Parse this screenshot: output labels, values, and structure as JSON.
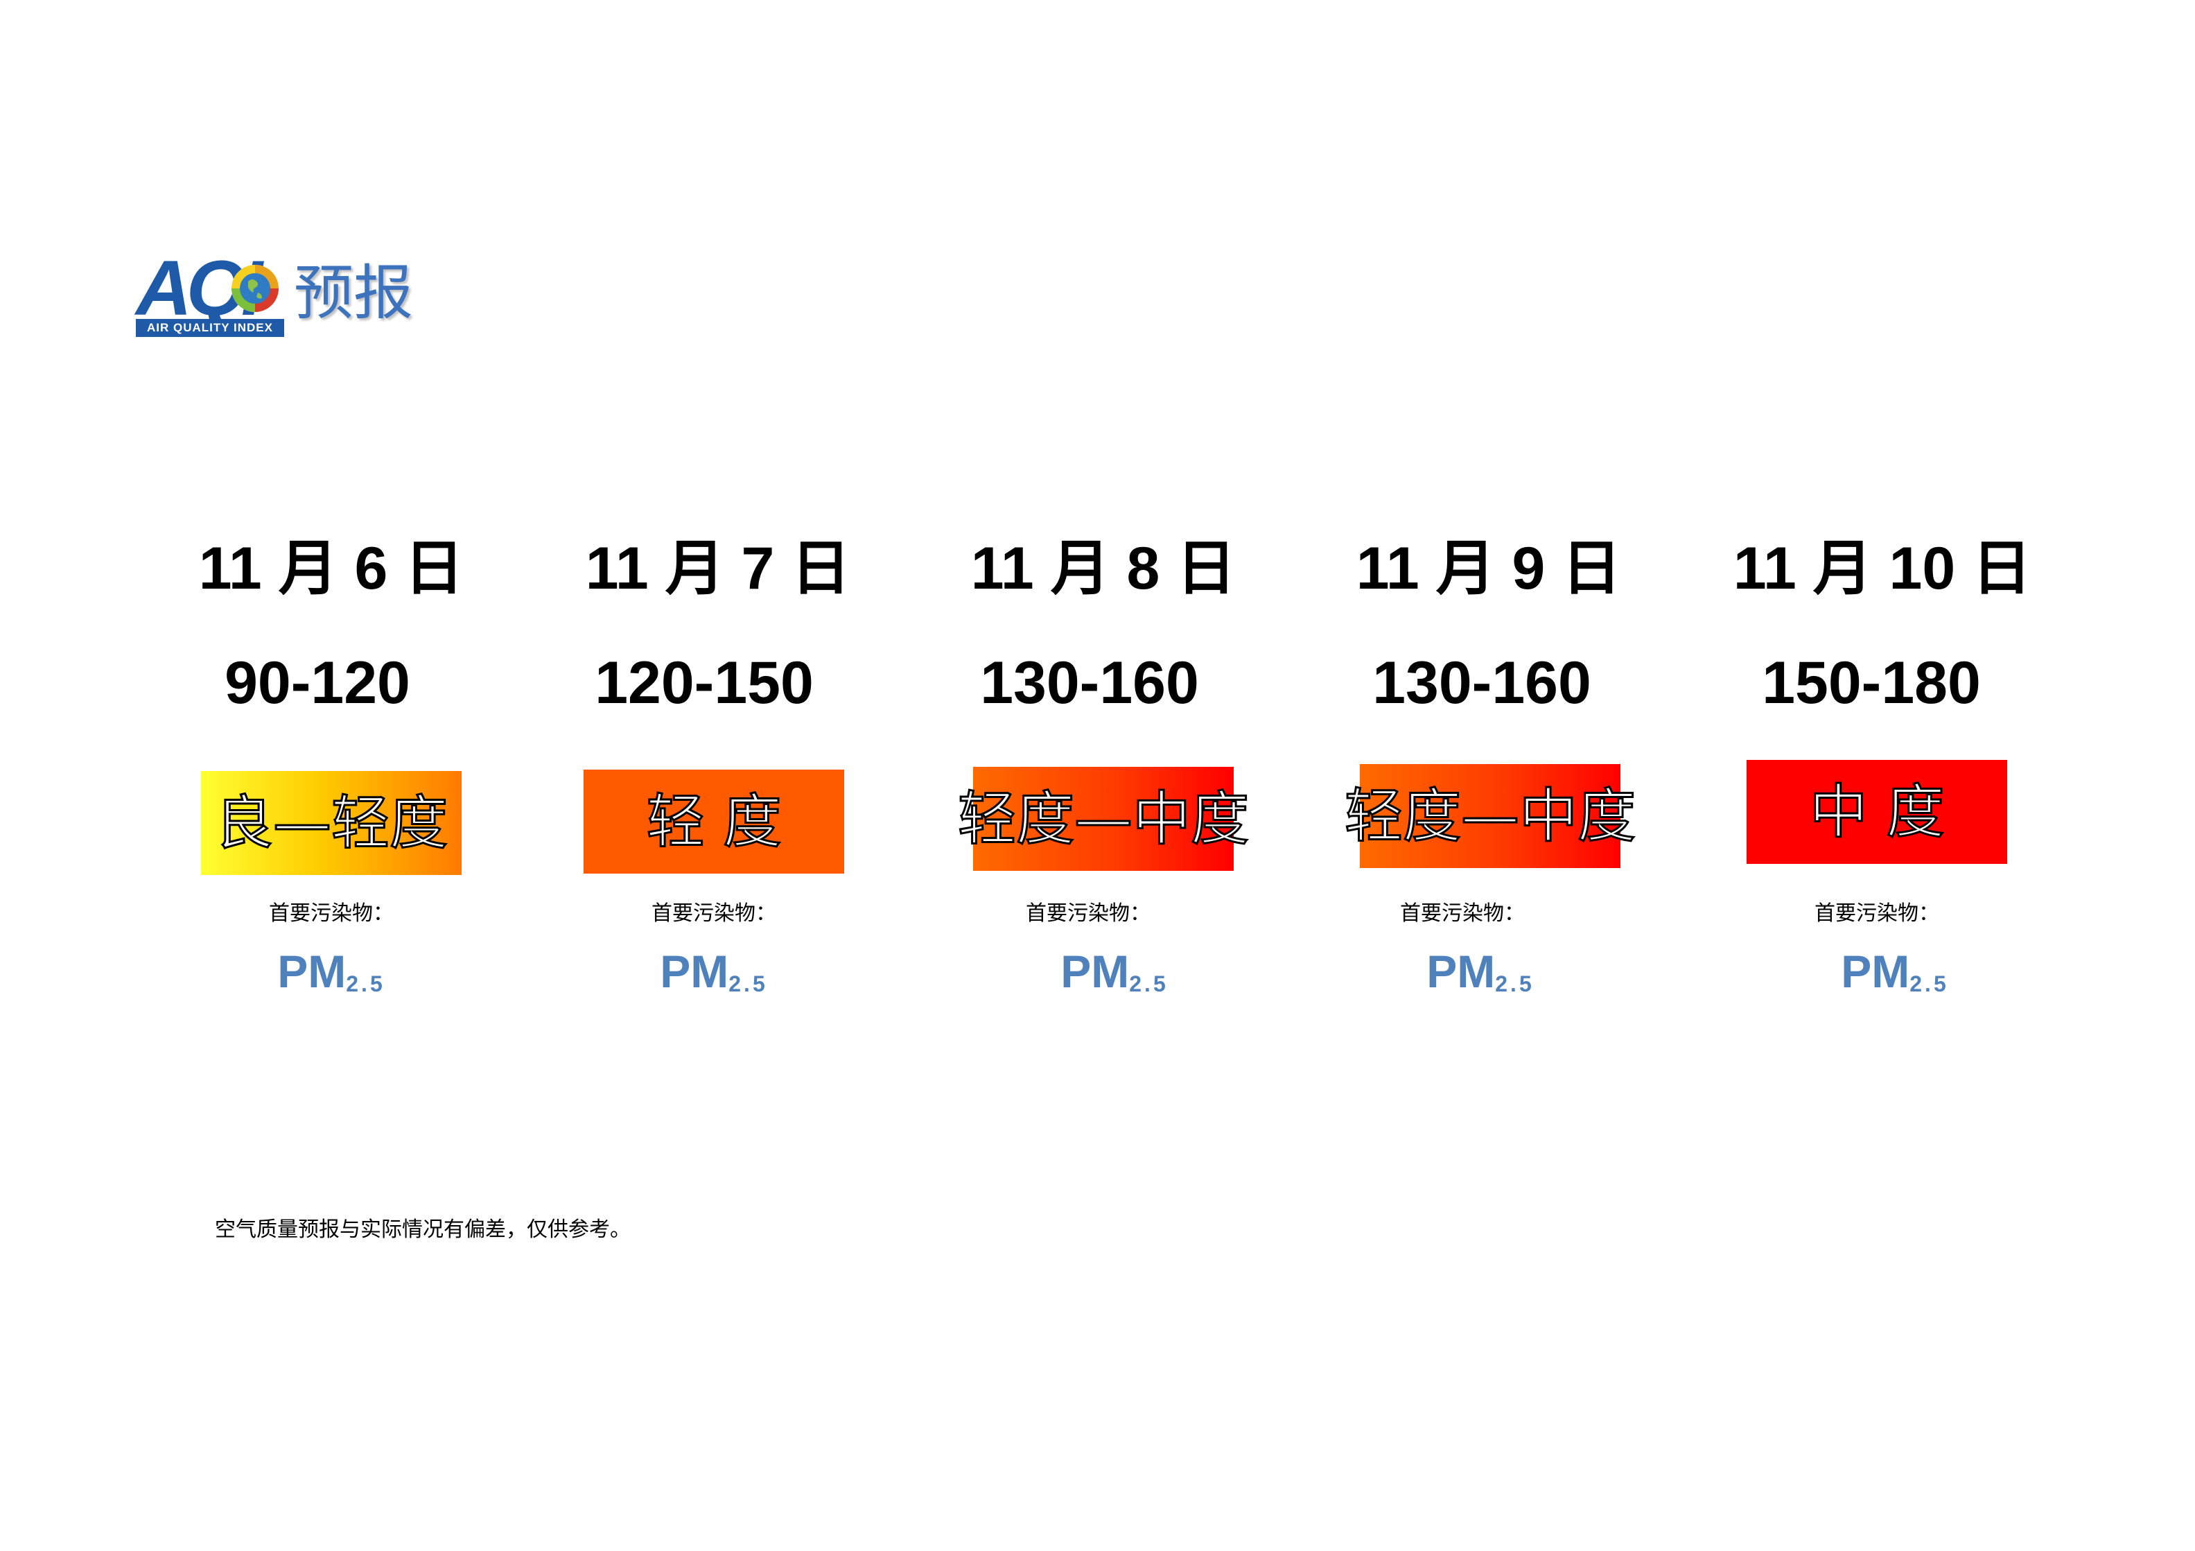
{
  "logo": {
    "letters": "AQI",
    "strip_text": "AIR QUALITY INDEX",
    "title": "预报"
  },
  "forecasts": [
    {
      "date": "11 月 6 日",
      "aqi_range": "90-120",
      "level": "良—轻度",
      "pollutant_label": "首要污染物：",
      "pollutant_main": "PM",
      "pollutant_sub": "2.5"
    },
    {
      "date": "11 月 7 日",
      "aqi_range": "120-150",
      "level": "轻 度",
      "pollutant_label": "首要污染物：",
      "pollutant_main": "PM",
      "pollutant_sub": "2.5"
    },
    {
      "date": "11 月 8 日",
      "aqi_range": "130-160",
      "level": "轻度—中度",
      "pollutant_label": "首要污染物：",
      "pollutant_main": "PM",
      "pollutant_sub": "2.5"
    },
    {
      "date": "11 月 9 日",
      "aqi_range": "130-160",
      "level": "轻度—中度",
      "pollutant_label": "首要污染物：",
      "pollutant_main": "PM",
      "pollutant_sub": "2.5"
    },
    {
      "date": "11 月 10 日",
      "aqi_range": "150-180",
      "level": "中 度",
      "pollutant_label": "首要污染物：",
      "pollutant_main": "PM",
      "pollutant_sub": "2.5"
    }
  ],
  "colors": {
    "good_to_light": [
      "#ffff33",
      "#ff7a00"
    ],
    "light": "#ff5a00",
    "light_to_moderate": [
      "#ff5a00",
      "#ff0000"
    ],
    "moderate": "#ff0000",
    "pollutant_text": "#4f81bd",
    "logo_blue": "#1f5aa8"
  },
  "footnote": "空气质量预报与实际情况有偏差，仅供参考。"
}
